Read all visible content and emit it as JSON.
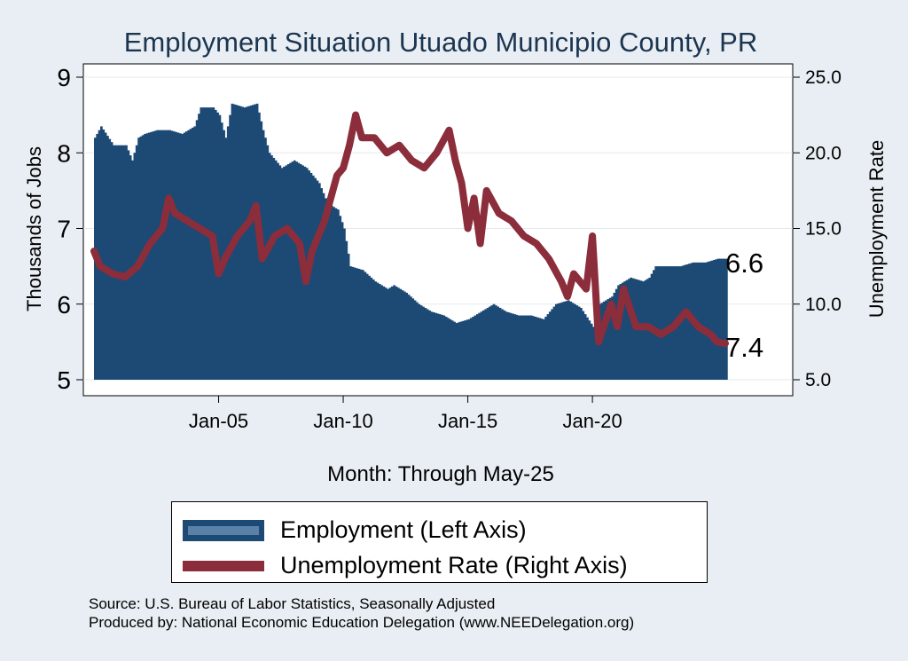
{
  "chart_data": {
    "type": "bar+line",
    "title": "Employment Situation Utuado Municipio  County, PR",
    "xlabel": "Month: Through May-25",
    "ylabel_left": "Thousands of Jobs",
    "ylabel_right": "Unemployment Rate",
    "ylim_left": [
      5,
      9
    ],
    "ylim_right": [
      5.0,
      25.0
    ],
    "yticks_left": [
      "5",
      "6",
      "7",
      "8",
      "9"
    ],
    "yticks_right": [
      "5.0",
      "10.0",
      "15.0",
      "20.0",
      "25.0"
    ],
    "xticks": [
      "Jan-05",
      "Jan-10",
      "Jan-15",
      "Jan-20"
    ],
    "x_range": [
      "Jan-00",
      "May-25"
    ],
    "last_employment_label": "6.6",
    "last_unemployment_label": "7.4",
    "colors": {
      "employment": "#1c4a75",
      "unemployment": "#8b2d3a",
      "background": "#e8eef3",
      "plot": "#ffffff"
    },
    "legend": [
      "Employment (Left Axis)",
      "Unemployment Rate (Right Axis)"
    ],
    "legend_position": "bottom",
    "grid": true,
    "series": [
      {
        "name": "Employment (Left Axis)",
        "kind": "bar",
        "points": [
          [
            "2000-01",
            8.2
          ],
          [
            "2000-04",
            8.35
          ],
          [
            "2000-10",
            8.1
          ],
          [
            "2001-04",
            8.1
          ],
          [
            "2001-07",
            7.9
          ],
          [
            "2001-10",
            8.2
          ],
          [
            "2002-01",
            8.25
          ],
          [
            "2002-07",
            8.3
          ],
          [
            "2003-01",
            8.3
          ],
          [
            "2003-07",
            8.25
          ],
          [
            "2004-01",
            8.35
          ],
          [
            "2004-04",
            8.6
          ],
          [
            "2004-10",
            8.6
          ],
          [
            "2005-01",
            8.5
          ],
          [
            "2005-04",
            8.2
          ],
          [
            "2005-07",
            8.65
          ],
          [
            "2006-01",
            8.6
          ],
          [
            "2006-07",
            8.65
          ],
          [
            "2006-10",
            8.3
          ],
          [
            "2007-01",
            8.0
          ],
          [
            "2007-07",
            7.8
          ],
          [
            "2008-01",
            7.9
          ],
          [
            "2008-07",
            7.8
          ],
          [
            "2009-01",
            7.6
          ],
          [
            "2009-04",
            7.4
          ],
          [
            "2009-07",
            7.3
          ],
          [
            "2009-10",
            7.25
          ],
          [
            "2010-01",
            7.0
          ],
          [
            "2010-04",
            6.5
          ],
          [
            "2010-10",
            6.45
          ],
          [
            "2011-04",
            6.3
          ],
          [
            "2011-10",
            6.2
          ],
          [
            "2012-01",
            6.25
          ],
          [
            "2012-07",
            6.15
          ],
          [
            "2013-01",
            6.0
          ],
          [
            "2013-07",
            5.9
          ],
          [
            "2014-01",
            5.85
          ],
          [
            "2014-07",
            5.75
          ],
          [
            "2015-01",
            5.8
          ],
          [
            "2015-07",
            5.9
          ],
          [
            "2016-01",
            6.0
          ],
          [
            "2016-07",
            5.9
          ],
          [
            "2017-01",
            5.85
          ],
          [
            "2017-07",
            5.85
          ],
          [
            "2018-01",
            5.8
          ],
          [
            "2018-07",
            6.0
          ],
          [
            "2019-01",
            6.05
          ],
          [
            "2019-07",
            5.95
          ],
          [
            "2020-01",
            5.7
          ],
          [
            "2020-04",
            6.0
          ],
          [
            "2020-10",
            6.1
          ],
          [
            "2021-01",
            6.25
          ],
          [
            "2021-07",
            6.35
          ],
          [
            "2022-01",
            6.3
          ],
          [
            "2022-04",
            6.35
          ],
          [
            "2022-07",
            6.5
          ],
          [
            "2023-01",
            6.5
          ],
          [
            "2023-07",
            6.5
          ],
          [
            "2024-01",
            6.55
          ],
          [
            "2024-07",
            6.55
          ],
          [
            "2025-01",
            6.6
          ],
          [
            "2025-05",
            6.6
          ]
        ]
      },
      {
        "name": "Unemployment Rate (Right Axis)",
        "kind": "line",
        "points": [
          [
            "2000-01",
            13.5
          ],
          [
            "2000-04",
            12.5
          ],
          [
            "2000-10",
            12.0
          ],
          [
            "2001-04",
            11.8
          ],
          [
            "2001-10",
            12.5
          ],
          [
            "2002-04",
            14.0
          ],
          [
            "2002-10",
            15.0
          ],
          [
            "2003-01",
            17.0
          ],
          [
            "2003-04",
            16.0
          ],
          [
            "2003-10",
            15.5
          ],
          [
            "2004-04",
            15.0
          ],
          [
            "2004-10",
            14.5
          ],
          [
            "2005-01",
            12.0
          ],
          [
            "2005-04",
            13.0
          ],
          [
            "2005-10",
            14.5
          ],
          [
            "2006-04",
            15.5
          ],
          [
            "2006-07",
            16.5
          ],
          [
            "2006-10",
            13.0
          ],
          [
            "2007-04",
            14.5
          ],
          [
            "2007-10",
            15.0
          ],
          [
            "2008-04",
            14.0
          ],
          [
            "2008-07",
            11.5
          ],
          [
            "2008-10",
            13.5
          ],
          [
            "2009-04",
            15.5
          ],
          [
            "2009-10",
            18.5
          ],
          [
            "2010-01",
            19.0
          ],
          [
            "2010-04",
            20.5
          ],
          [
            "2010-07",
            22.5
          ],
          [
            "2010-10",
            21.0
          ],
          [
            "2011-04",
            21.0
          ],
          [
            "2011-10",
            20.0
          ],
          [
            "2012-04",
            20.5
          ],
          [
            "2012-10",
            19.5
          ],
          [
            "2013-04",
            19.0
          ],
          [
            "2013-10",
            20.0
          ],
          [
            "2014-04",
            21.5
          ],
          [
            "2014-07",
            19.5
          ],
          [
            "2014-10",
            18.0
          ],
          [
            "2015-01",
            15.0
          ],
          [
            "2015-04",
            17.0
          ],
          [
            "2015-07",
            14.0
          ],
          [
            "2015-10",
            17.5
          ],
          [
            "2016-04",
            16.0
          ],
          [
            "2016-10",
            15.5
          ],
          [
            "2017-04",
            14.5
          ],
          [
            "2017-10",
            14.0
          ],
          [
            "2018-04",
            13.0
          ],
          [
            "2018-10",
            11.5
          ],
          [
            "2019-01",
            10.5
          ],
          [
            "2019-04",
            12.0
          ],
          [
            "2019-10",
            11.0
          ],
          [
            "2020-01",
            14.5
          ],
          [
            "2020-04",
            7.5
          ],
          [
            "2020-10",
            10.0
          ],
          [
            "2021-01",
            8.5
          ],
          [
            "2021-04",
            11.0
          ],
          [
            "2021-10",
            8.5
          ],
          [
            "2022-04",
            8.5
          ],
          [
            "2022-10",
            8.0
          ],
          [
            "2023-04",
            8.5
          ],
          [
            "2023-10",
            9.5
          ],
          [
            "2024-04",
            8.5
          ],
          [
            "2024-10",
            8.0
          ],
          [
            "2025-01",
            7.5
          ],
          [
            "2025-05",
            7.4
          ]
        ]
      }
    ]
  },
  "source": {
    "line1": "Source: U.S. Bureau of Labor Statistics, Seasonally Adjusted",
    "line2": "Produced by: National Economic Education Delegation (www.NEEDelegation.org)"
  }
}
